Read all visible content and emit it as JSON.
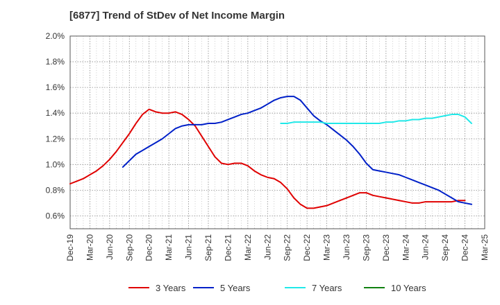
{
  "chart_data": {
    "type": "line",
    "title": "[6877]  Trend of StDev of Net Income Margin",
    "xlabel": "",
    "ylabel": "",
    "x_ticks": [
      "Dec-19",
      "Mar-20",
      "Jun-20",
      "Sep-20",
      "Dec-20",
      "Mar-21",
      "Jun-21",
      "Sep-21",
      "Dec-21",
      "Mar-22",
      "Jun-22",
      "Sep-22",
      "Dec-22",
      "Mar-23",
      "Jun-23",
      "Sep-23",
      "Dec-23",
      "Mar-24",
      "Jun-24",
      "Sep-24",
      "Dec-24",
      "Mar-25"
    ],
    "y_ticks": [
      "0.6%",
      "0.8%",
      "1.0%",
      "1.2%",
      "1.4%",
      "1.6%",
      "1.8%",
      "2.0%"
    ],
    "ylim": [
      0.5,
      2.0
    ],
    "grid": true,
    "legend_position": "bottom",
    "colors": {
      "3 Years": "#e00000",
      "5 Years": "#0020c8",
      "7 Years": "#20e8e8",
      "10 Years": "#108010"
    },
    "series": [
      {
        "name": "3 Years",
        "color": "#e00000",
        "points": [
          [
            "Dec-19",
            0.85
          ],
          [
            "Jan-20",
            0.87
          ],
          [
            "Feb-20",
            0.89
          ],
          [
            "Mar-20",
            0.92
          ],
          [
            "Apr-20",
            0.95
          ],
          [
            "May-20",
            0.99
          ],
          [
            "Jun-20",
            1.04
          ],
          [
            "Jul-20",
            1.1
          ],
          [
            "Aug-20",
            1.17
          ],
          [
            "Sep-20",
            1.24
          ],
          [
            "Oct-20",
            1.32
          ],
          [
            "Nov-20",
            1.39
          ],
          [
            "Dec-20",
            1.43
          ],
          [
            "Jan-21",
            1.41
          ],
          [
            "Feb-21",
            1.4
          ],
          [
            "Mar-21",
            1.4
          ],
          [
            "Apr-21",
            1.41
          ],
          [
            "May-21",
            1.39
          ],
          [
            "Jun-21",
            1.35
          ],
          [
            "Jul-21",
            1.3
          ],
          [
            "Aug-21",
            1.22
          ],
          [
            "Sep-21",
            1.14
          ],
          [
            "Oct-21",
            1.06
          ],
          [
            "Nov-21",
            1.01
          ],
          [
            "Dec-21",
            1.0
          ],
          [
            "Jan-22",
            1.01
          ],
          [
            "Feb-22",
            1.01
          ],
          [
            "Mar-22",
            0.99
          ],
          [
            "Apr-22",
            0.95
          ],
          [
            "May-22",
            0.92
          ],
          [
            "Jun-22",
            0.9
          ],
          [
            "Jul-22",
            0.89
          ],
          [
            "Aug-22",
            0.86
          ],
          [
            "Sep-22",
            0.81
          ],
          [
            "Oct-22",
            0.74
          ],
          [
            "Nov-22",
            0.69
          ],
          [
            "Dec-22",
            0.66
          ],
          [
            "Jan-23",
            0.66
          ],
          [
            "Feb-23",
            0.67
          ],
          [
            "Mar-23",
            0.68
          ],
          [
            "Apr-23",
            0.7
          ],
          [
            "May-23",
            0.72
          ],
          [
            "Jun-23",
            0.74
          ],
          [
            "Jul-23",
            0.76
          ],
          [
            "Aug-23",
            0.78
          ],
          [
            "Sep-23",
            0.78
          ],
          [
            "Oct-23",
            0.76
          ],
          [
            "Nov-23",
            0.75
          ],
          [
            "Dec-23",
            0.74
          ],
          [
            "Jan-24",
            0.73
          ],
          [
            "Feb-24",
            0.72
          ],
          [
            "Mar-24",
            0.71
          ],
          [
            "Apr-24",
            0.7
          ],
          [
            "May-24",
            0.7
          ],
          [
            "Jun-24",
            0.71
          ],
          [
            "Jul-24",
            0.71
          ],
          [
            "Aug-24",
            0.71
          ],
          [
            "Sep-24",
            0.71
          ],
          [
            "Oct-24",
            0.71
          ],
          [
            "Nov-24",
            0.72
          ],
          [
            "Dec-24",
            0.72
          ]
        ]
      },
      {
        "name": "5 Years",
        "color": "#0020c8",
        "points": [
          [
            "Aug-20",
            0.98
          ],
          [
            "Sep-20",
            1.03
          ],
          [
            "Oct-20",
            1.08
          ],
          [
            "Nov-20",
            1.11
          ],
          [
            "Dec-20",
            1.14
          ],
          [
            "Jan-21",
            1.17
          ],
          [
            "Feb-21",
            1.2
          ],
          [
            "Mar-21",
            1.24
          ],
          [
            "Apr-21",
            1.28
          ],
          [
            "May-21",
            1.3
          ],
          [
            "Jun-21",
            1.31
          ],
          [
            "Jul-21",
            1.31
          ],
          [
            "Aug-21",
            1.31
          ],
          [
            "Sep-21",
            1.32
          ],
          [
            "Oct-21",
            1.32
          ],
          [
            "Nov-21",
            1.33
          ],
          [
            "Dec-21",
            1.35
          ],
          [
            "Jan-22",
            1.37
          ],
          [
            "Feb-22",
            1.39
          ],
          [
            "Mar-22",
            1.4
          ],
          [
            "Apr-22",
            1.42
          ],
          [
            "May-22",
            1.44
          ],
          [
            "Jun-22",
            1.47
          ],
          [
            "Jul-22",
            1.5
          ],
          [
            "Aug-22",
            1.52
          ],
          [
            "Sep-22",
            1.53
          ],
          [
            "Oct-22",
            1.53
          ],
          [
            "Nov-22",
            1.5
          ],
          [
            "Dec-22",
            1.44
          ],
          [
            "Jan-23",
            1.38
          ],
          [
            "Feb-23",
            1.34
          ],
          [
            "Mar-23",
            1.31
          ],
          [
            "Apr-23",
            1.27
          ],
          [
            "May-23",
            1.23
          ],
          [
            "Jun-23",
            1.19
          ],
          [
            "Jul-23",
            1.14
          ],
          [
            "Aug-23",
            1.08
          ],
          [
            "Sep-23",
            1.01
          ],
          [
            "Oct-23",
            0.96
          ],
          [
            "Nov-23",
            0.95
          ],
          [
            "Dec-23",
            0.94
          ],
          [
            "Jan-24",
            0.93
          ],
          [
            "Feb-24",
            0.92
          ],
          [
            "Mar-24",
            0.9
          ],
          [
            "Apr-24",
            0.88
          ],
          [
            "May-24",
            0.86
          ],
          [
            "Jun-24",
            0.84
          ],
          [
            "Jul-24",
            0.82
          ],
          [
            "Aug-24",
            0.8
          ],
          [
            "Sep-24",
            0.77
          ],
          [
            "Oct-24",
            0.74
          ],
          [
            "Nov-24",
            0.71
          ],
          [
            "Dec-24",
            0.7
          ],
          [
            "Jan-25",
            0.69
          ]
        ]
      },
      {
        "name": "7 Years",
        "color": "#20e8e8",
        "points": [
          [
            "Aug-22",
            1.32
          ],
          [
            "Sep-22",
            1.32
          ],
          [
            "Oct-22",
            1.33
          ],
          [
            "Nov-22",
            1.33
          ],
          [
            "Dec-22",
            1.33
          ],
          [
            "Jan-23",
            1.33
          ],
          [
            "Feb-23",
            1.33
          ],
          [
            "Mar-23",
            1.32
          ],
          [
            "Apr-23",
            1.32
          ],
          [
            "May-23",
            1.32
          ],
          [
            "Jun-23",
            1.32
          ],
          [
            "Jul-23",
            1.32
          ],
          [
            "Aug-23",
            1.32
          ],
          [
            "Sep-23",
            1.32
          ],
          [
            "Oct-23",
            1.32
          ],
          [
            "Nov-23",
            1.32
          ],
          [
            "Dec-23",
            1.33
          ],
          [
            "Jan-24",
            1.33
          ],
          [
            "Feb-24",
            1.34
          ],
          [
            "Mar-24",
            1.34
          ],
          [
            "Apr-24",
            1.35
          ],
          [
            "May-24",
            1.35
          ],
          [
            "Jun-24",
            1.36
          ],
          [
            "Jul-24",
            1.36
          ],
          [
            "Aug-24",
            1.37
          ],
          [
            "Sep-24",
            1.38
          ],
          [
            "Oct-24",
            1.39
          ],
          [
            "Nov-24",
            1.39
          ],
          [
            "Dec-24",
            1.37
          ],
          [
            "Jan-25",
            1.32
          ]
        ]
      },
      {
        "name": "10 Years",
        "color": "#108010",
        "points": []
      }
    ]
  }
}
